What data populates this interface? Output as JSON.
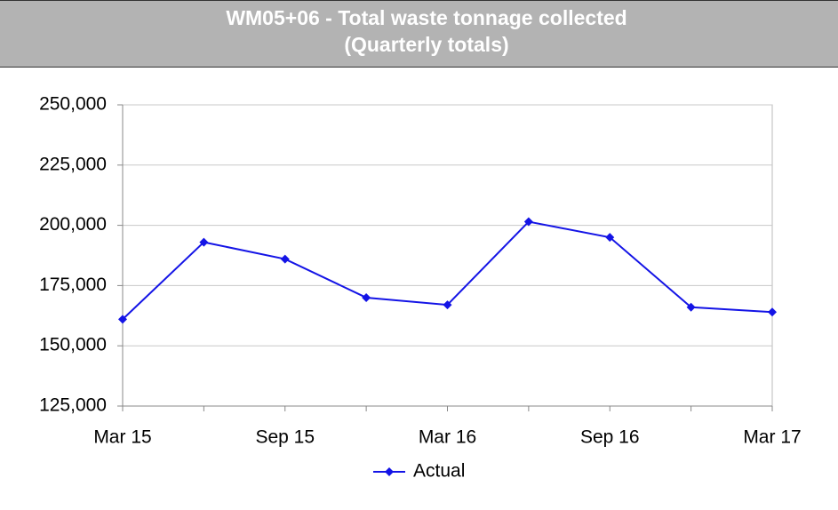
{
  "chart_data": {
    "type": "line",
    "title": "WM05+06 - Total waste tonnage collected",
    "subtitle": "(Quarterly totals)",
    "categories": [
      "Mar 15",
      null,
      "Sep 15",
      null,
      "Mar 16",
      null,
      "Sep 16",
      null,
      "Mar 17"
    ],
    "series": [
      {
        "name": "Actual",
        "color": "#1414e6",
        "values": [
          161000,
          193000,
          186000,
          170000,
          167000,
          201500,
          195000,
          166000,
          164000
        ]
      }
    ],
    "ylim": [
      125000,
      250000
    ],
    "yticks": [
      {
        "value": 125000,
        "label": "125,000"
      },
      {
        "value": 150000,
        "label": "150,000"
      },
      {
        "value": 175000,
        "label": "175,000"
      },
      {
        "value": 200000,
        "label": "200,000"
      },
      {
        "value": 225000,
        "label": "225,000"
      },
      {
        "value": 250000,
        "label": "250,000"
      }
    ],
    "grid": true,
    "legend": "bottom"
  }
}
